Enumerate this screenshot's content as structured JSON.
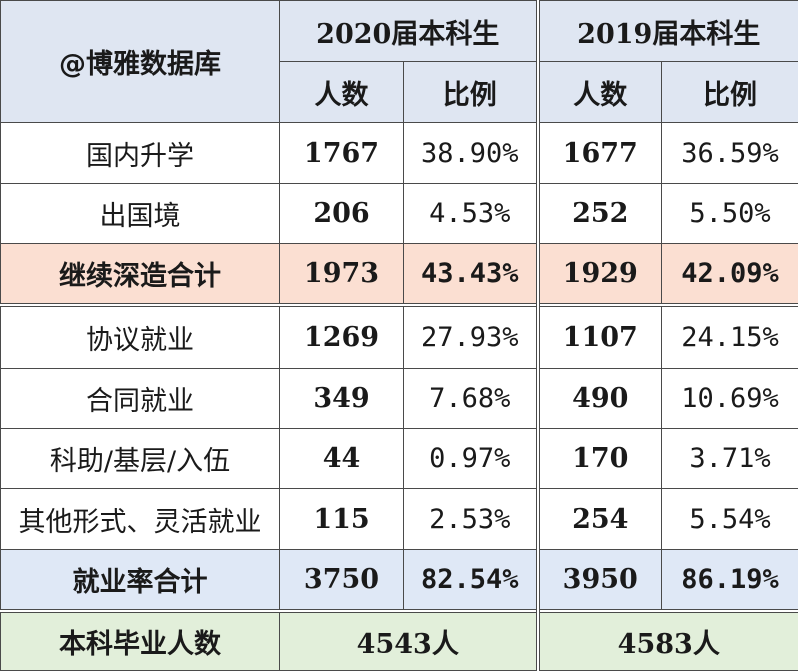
{
  "header": {
    "brand": "@博雅数据库",
    "year_2020": "2020届本科生",
    "year_2019": "2019届本科生",
    "col_count": "人数",
    "col_ratio": "比例"
  },
  "rows": [
    {
      "label": "国内升学",
      "c2020": "1767",
      "p2020": "38.90%",
      "c2019": "1677",
      "p2019": "36.59%"
    },
    {
      "label": "出国境",
      "c2020": "206",
      "p2020": "4.53%",
      "c2019": "252",
      "p2019": "5.50%"
    },
    {
      "label": "继续深造合计",
      "c2020": "1973",
      "p2020": "43.43%",
      "c2019": "1929",
      "p2019": "42.09%"
    },
    {
      "label": "协议就业",
      "c2020": "1269",
      "p2020": "27.93%",
      "c2019": "1107",
      "p2019": "24.15%"
    },
    {
      "label": "合同就业",
      "c2020": "349",
      "p2020": "7.68%",
      "c2019": "490",
      "p2019": "10.69%"
    },
    {
      "label": "科助/基层/入伍",
      "c2020": "44",
      "p2020": "0.97%",
      "c2019": "170",
      "p2019": "3.71%"
    },
    {
      "label": "其他形式、灵活就业",
      "c2020": "115",
      "p2020": "2.53%",
      "c2019": "254",
      "p2019": "5.54%"
    },
    {
      "label": "就业率合计",
      "c2020": "3750",
      "p2020": "82.54%",
      "c2019": "3950",
      "p2019": "86.19%"
    }
  ],
  "footer": {
    "label": "本科毕业人数",
    "total_2020": "4543人",
    "total_2019": "4583人"
  },
  "colors": {
    "header_bg": "#dfe6f2",
    "highlight_pink": "#fbdfd2",
    "highlight_blue": "#dfe8f6",
    "footer_green": "#e2efda",
    "count_blue": "#1b6fc4",
    "year_red": "#d01010"
  }
}
